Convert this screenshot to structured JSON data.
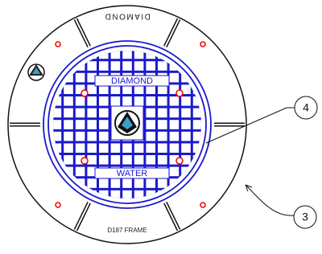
{
  "frame": {
    "top_text": "DIAMOND",
    "label": "D187 FRAME"
  },
  "cover": {
    "top_text": "DIAMOND",
    "bottom_text": "WATER"
  },
  "callouts": [
    {
      "label": "4"
    },
    {
      "label": "3"
    }
  ]
}
